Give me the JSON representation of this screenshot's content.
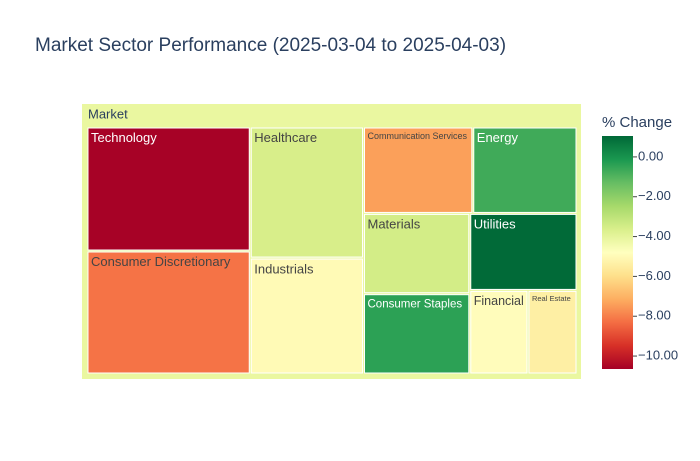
{
  "chart_data": {
    "type": "treemap",
    "title": "Market Sector Performance (2025-03-04 to 2025-04-03)",
    "root": "Market",
    "categories": [
      "Technology",
      "Consumer Discretionary",
      "Healthcare",
      "Industrials",
      "Communication Services",
      "Energy",
      "Materials",
      "Consumer Staples",
      "Utilities",
      "Financial",
      "Real Estate"
    ],
    "sizes": [
      19680,
      19520,
      14430,
      12765,
      9180,
      8755,
      8295,
      8295,
      8025,
      4731,
      3984
    ],
    "values": [
      -10.6,
      -8.2,
      -3.6,
      -5.0,
      -7.4,
      -0.7,
      -3.5,
      -0.4,
      1.0,
      -4.9,
      -5.4
    ],
    "colorbar_title": "% Change",
    "colorbar_lim": [
      -10.65,
      1.05
    ],
    "colorbar_ticks": [
      {
        "value": 0,
        "label": "0.00"
      },
      {
        "value": -2,
        "label": "−2.00"
      },
      {
        "value": -4,
        "label": "−4.00"
      },
      {
        "value": -6,
        "label": "−6.00"
      },
      {
        "value": -8,
        "label": "−8.00"
      },
      {
        "value": -10,
        "label": "−10.00"
      }
    ],
    "colorscale": [
      "#a50026",
      "#d73027",
      "#f46d43",
      "#fdae61",
      "#fee08b",
      "#ffffbf",
      "#d9ef8b",
      "#a6d96a",
      "#66bd63",
      "#1a9850",
      "#006837"
    ]
  }
}
